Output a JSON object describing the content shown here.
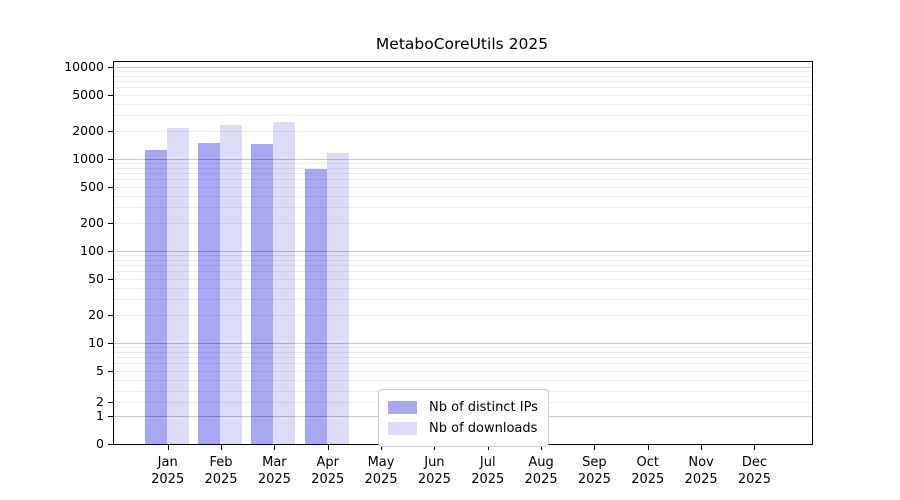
{
  "chart_data": {
    "type": "bar",
    "title": "MetaboCoreUtils 2025",
    "xlabel": "",
    "ylabel": "",
    "yscale": "log",
    "ylim": [
      0,
      11500
    ],
    "grid": "horizontal, minor and major log gridlines drawn over bars",
    "legend_position": "inside bottom-center, framed box",
    "y_ticks": [
      0,
      1,
      2,
      5,
      10,
      20,
      50,
      100,
      200,
      500,
      1000,
      2000,
      5000,
      10000
    ],
    "categories": [
      {
        "month": "Jan",
        "year": "2025"
      },
      {
        "month": "Feb",
        "year": "2025"
      },
      {
        "month": "Mar",
        "year": "2025"
      },
      {
        "month": "Apr",
        "year": "2025"
      },
      {
        "month": "May",
        "year": "2025"
      },
      {
        "month": "Jun",
        "year": "2025"
      },
      {
        "month": "Jul",
        "year": "2025"
      },
      {
        "month": "Aug",
        "year": "2025"
      },
      {
        "month": "Sep",
        "year": "2025"
      },
      {
        "month": "Oct",
        "year": "2025"
      },
      {
        "month": "Nov",
        "year": "2025"
      },
      {
        "month": "Dec",
        "year": "2025"
      }
    ],
    "series": [
      {
        "name": "Nb of distinct IPs",
        "color": "#a8a8f2",
        "values": [
          1250,
          1500,
          1450,
          780,
          null,
          null,
          null,
          null,
          null,
          null,
          null,
          null
        ]
      },
      {
        "name": "Nb of downloads",
        "color": "#dcdcf8",
        "values": [
          2150,
          2350,
          2550,
          1150,
          null,
          null,
          null,
          null,
          null,
          null,
          null,
          null
        ]
      }
    ]
  }
}
